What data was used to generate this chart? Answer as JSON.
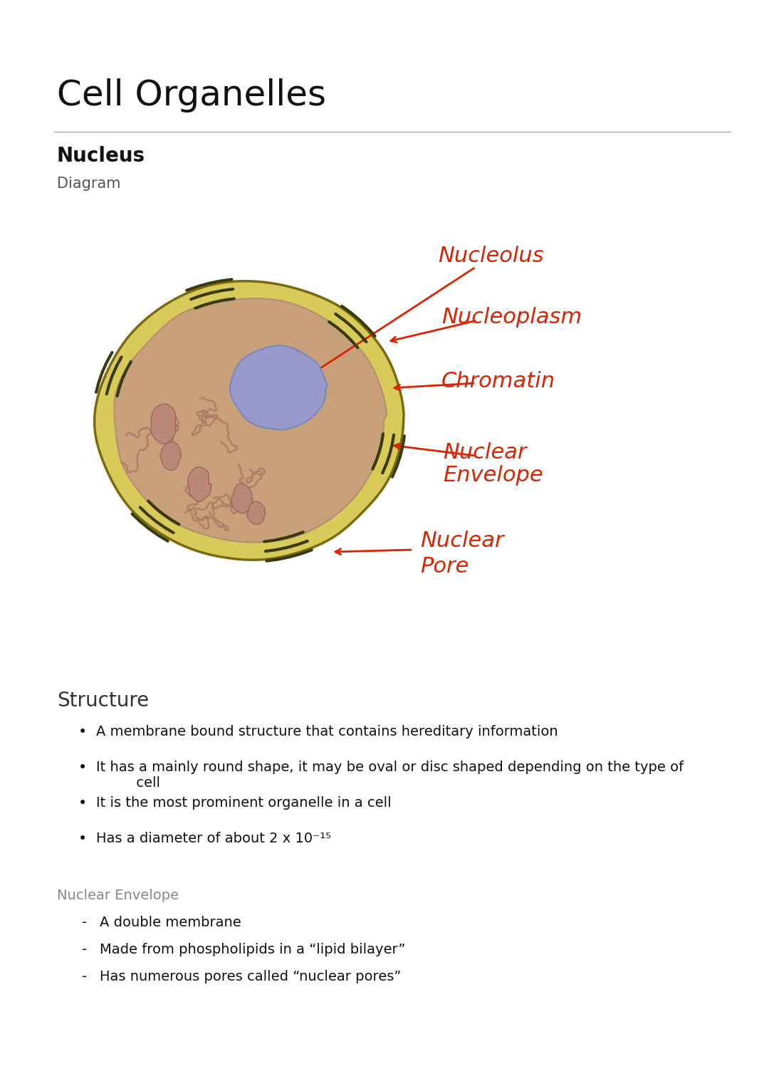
{
  "title": "Cell Organelles",
  "section1": "Nucleus",
  "section1_sub": "Diagram",
  "structure_title": "Structure",
  "bullet_points": [
    "A membrane bound structure that contains hereditary information",
    "It has a mainly round shape, it may be oval or disc shaped depending on the type of cell",
    "It is the most prominent organelle in a cell",
    "Has a diameter of about 2 x 10"
  ],
  "nuclear_envelope_title": "Nuclear Envelope",
  "dash_points": [
    "A double membrane",
    "Made from phospholipids in a “lipid bilayer”",
    "Has numerous pores called “nuclear pores”"
  ],
  "bg_color": "#ffffff",
  "title_color": "#111111",
  "section_color": "#111111",
  "label_color": "#dd2200",
  "outer_envelope_color": "#d8cb5a",
  "outer_envelope_edge": "#7a6a10",
  "inner_fill_color": "#c8a07a",
  "nucleolus_color": "#9999cc",
  "chromatin_color": "#aa7766",
  "nuclear_envelope_label_color": "#888888"
}
